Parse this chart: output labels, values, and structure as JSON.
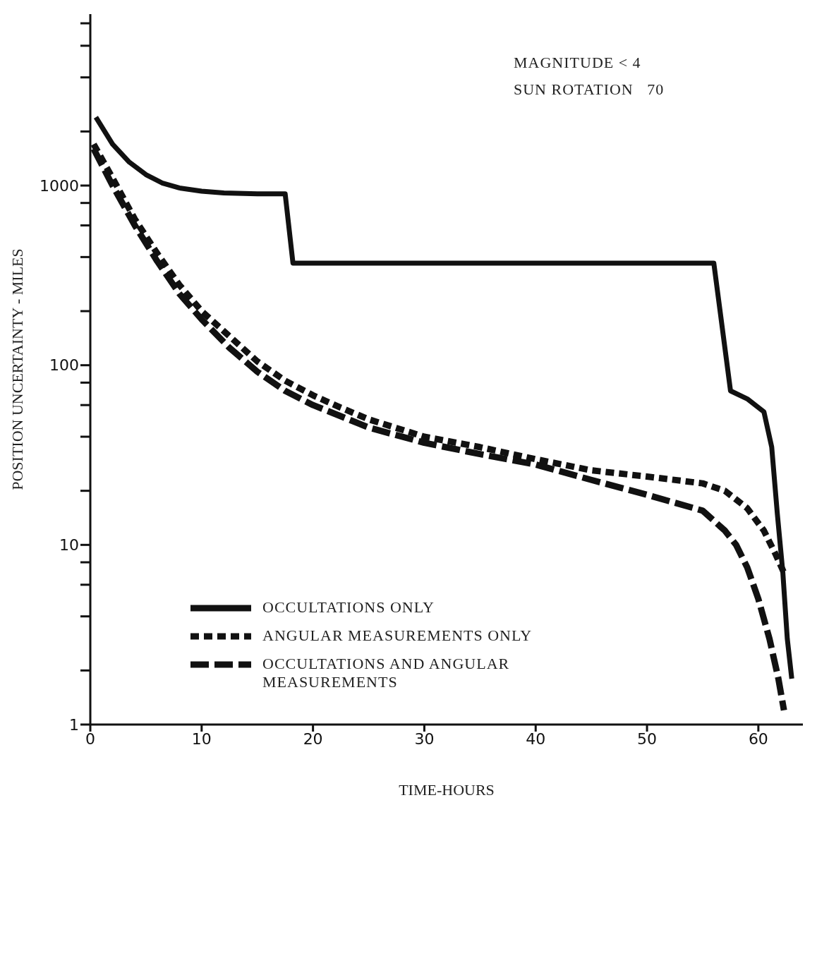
{
  "chart_data": {
    "type": "line",
    "xlabel": "TIME-HOURS",
    "ylabel": "POSITION UNCERTAINTY - MILES",
    "annotations": [
      "MAGNITUDE < 4",
      "SUN ROTATION   70"
    ],
    "xlim": [
      0,
      64
    ],
    "xticks": [
      0,
      10,
      20,
      30,
      40,
      50,
      60
    ],
    "ylim": [
      1,
      9000
    ],
    "yticks": [
      1,
      {
        "value": 2,
        "label": null
      },
      {
        "value": 4,
        "label": null
      },
      {
        "value": 6,
        "label": null
      },
      {
        "value": 8,
        "label": null
      },
      10,
      {
        "value": 20,
        "label": null
      },
      {
        "value": 40,
        "label": null
      },
      {
        "value": 60,
        "label": null
      },
      {
        "value": 80,
        "label": null
      },
      100,
      {
        "value": 200,
        "label": null
      },
      {
        "value": 400,
        "label": null
      },
      {
        "value": 600,
        "label": null
      },
      {
        "value": 800,
        "label": null
      },
      1000,
      {
        "value": 2000,
        "label": null
      },
      {
        "value": 4000,
        "label": null
      },
      {
        "value": 6000,
        "label": null
      },
      {
        "value": 8000,
        "label": null
      }
    ],
    "log": "y",
    "legend": "left",
    "marker": "none",
    "series": [
      {
        "name": "OCCULTATIONS ONLY",
        "color": "#111111",
        "line_style": "solid",
        "x": [
          0.5,
          2,
          3.5,
          5,
          6.5,
          8,
          10,
          12,
          15,
          17.5,
          18.2,
          56,
          57.5,
          59,
          60.5,
          61.2,
          61.7,
          62.2,
          62.6,
          63
        ],
        "values": [
          2400,
          1700,
          1350,
          1150,
          1030,
          970,
          930,
          910,
          900,
          900,
          370,
          370,
          72,
          65,
          55,
          35,
          15,
          7,
          3,
          1.8
        ]
      },
      {
        "name": "ANGULAR MEASUREMENTS ONLY",
        "color": "#111111",
        "line_style": "dotted",
        "x": [
          0.3,
          2,
          4,
          6,
          8,
          10,
          12.5,
          15,
          17.5,
          20,
          22.5,
          25,
          30,
          35,
          40,
          45,
          50,
          55,
          57,
          59,
          60.5,
          61.5,
          62.3
        ],
        "values": [
          1700,
          1100,
          650,
          420,
          280,
          200,
          145,
          105,
          82,
          68,
          58,
          50,
          40,
          35,
          30,
          26,
          24,
          22,
          20,
          16,
          12,
          9,
          7
        ]
      },
      {
        "name": "OCCULTATIONS AND ANGULAR MEASUREMENTS",
        "color": "#111111",
        "line_style": "dashed",
        "x": [
          0.3,
          2,
          4,
          6,
          8,
          10,
          12.5,
          15,
          17.5,
          20,
          22.5,
          25,
          30,
          35,
          40,
          45,
          50,
          55,
          57,
          58,
          59,
          60,
          61,
          61.8,
          62.3
        ],
        "values": [
          1600,
          1000,
          600,
          380,
          250,
          180,
          125,
          92,
          72,
          60,
          52,
          45,
          37,
          32,
          28,
          23,
          19,
          15.5,
          12,
          10,
          7.5,
          5,
          3,
          1.8,
          1.2
        ]
      }
    ]
  }
}
